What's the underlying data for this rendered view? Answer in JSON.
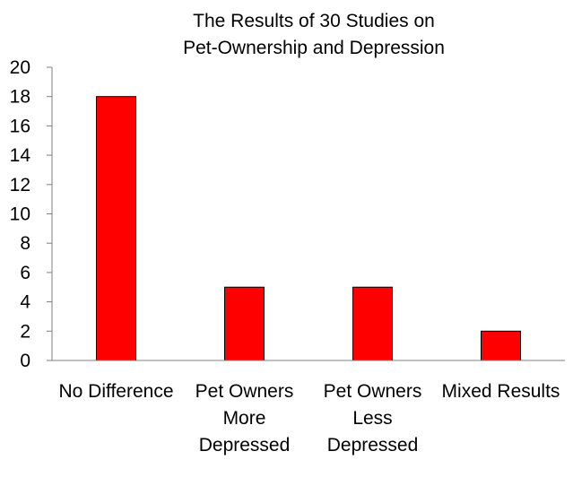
{
  "chart_data": {
    "type": "bar",
    "title": "The Results of 30 Studies on Pet-Ownership and Depression",
    "title_lines": [
      "The Results of 30 Studies on",
      "Pet-Ownership and Depression"
    ],
    "categories": [
      "No Difference",
      "Pet Owners More Depressed",
      "Pet Owners Less Depressed",
      "Mixed Results"
    ],
    "category_label_lines": [
      [
        "No Difference"
      ],
      [
        "Pet Owners",
        "More",
        "Depressed"
      ],
      [
        "Pet Owners",
        "Less",
        "Depressed"
      ],
      [
        "Mixed Results"
      ]
    ],
    "values": [
      18,
      5,
      5,
      2
    ],
    "xlabel": "",
    "ylabel": "",
    "ylim": [
      0,
      20
    ],
    "yticks": [
      0,
      2,
      4,
      6,
      8,
      10,
      12,
      14,
      16,
      18,
      20
    ],
    "grid": false,
    "legend": "none",
    "bar_color": "#ff0000",
    "bar_edge_color": "#000000"
  }
}
